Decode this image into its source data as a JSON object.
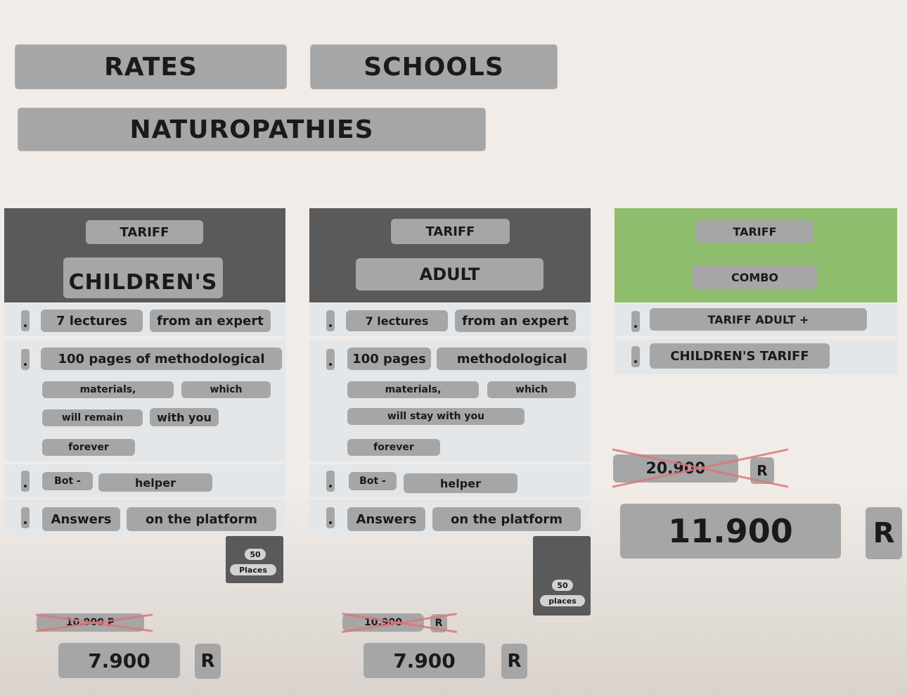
{
  "nav": {
    "rates": "RATES",
    "schools": "SCHOOLS",
    "naturopathies": "NATUROPATHIES"
  },
  "cards": {
    "children": {
      "tag": "TARIFF",
      "title": "CHILDREN'S",
      "f1a": "7 lectures",
      "f1b": "from an expert",
      "f2a": "100 pages of methodological",
      "f2b": "materials,",
      "f2c": "which",
      "f2d": "will remain",
      "f2e": "with you",
      "f2f": "forever",
      "f3a": "Bot -",
      "f3b": "helper",
      "f4a": "Answers",
      "f4b": "on the platform",
      "places_num": "50",
      "places_label": "Places",
      "old_price": "10.900 P",
      "price": "7.900",
      "currency": "R"
    },
    "adult": {
      "tag": "TARIFF",
      "title": "ADULT",
      "f1a": "7 lectures",
      "f1b": "from an expert",
      "f2a": "100 pages",
      "f2b": "methodological",
      "f2c": "materials,",
      "f2d": "which",
      "f2e": "will stay with you",
      "f2f": "forever",
      "f3a": "Bot -",
      "f3b": "helper",
      "f4a": "Answers",
      "f4b": "on the platform",
      "places_num": "50",
      "places_label": "places",
      "old_price": "10.900",
      "old_currency": "R",
      "price": "7.900",
      "currency": "R"
    },
    "combo": {
      "tag": "TARIFF",
      "title": "COMBO",
      "f1": "TARIFF ADULT +",
      "f2": "CHILDREN'S TARIFF",
      "old_price": "20.900",
      "old_currency": "R",
      "price": "11.900",
      "currency": "R"
    }
  },
  "colors": {
    "header_dark": "#5a5a5a",
    "header_green": "#8fbd6e",
    "pill": "#a6a6a6",
    "row": "#e4e7e9",
    "strike": "#dd7777"
  }
}
